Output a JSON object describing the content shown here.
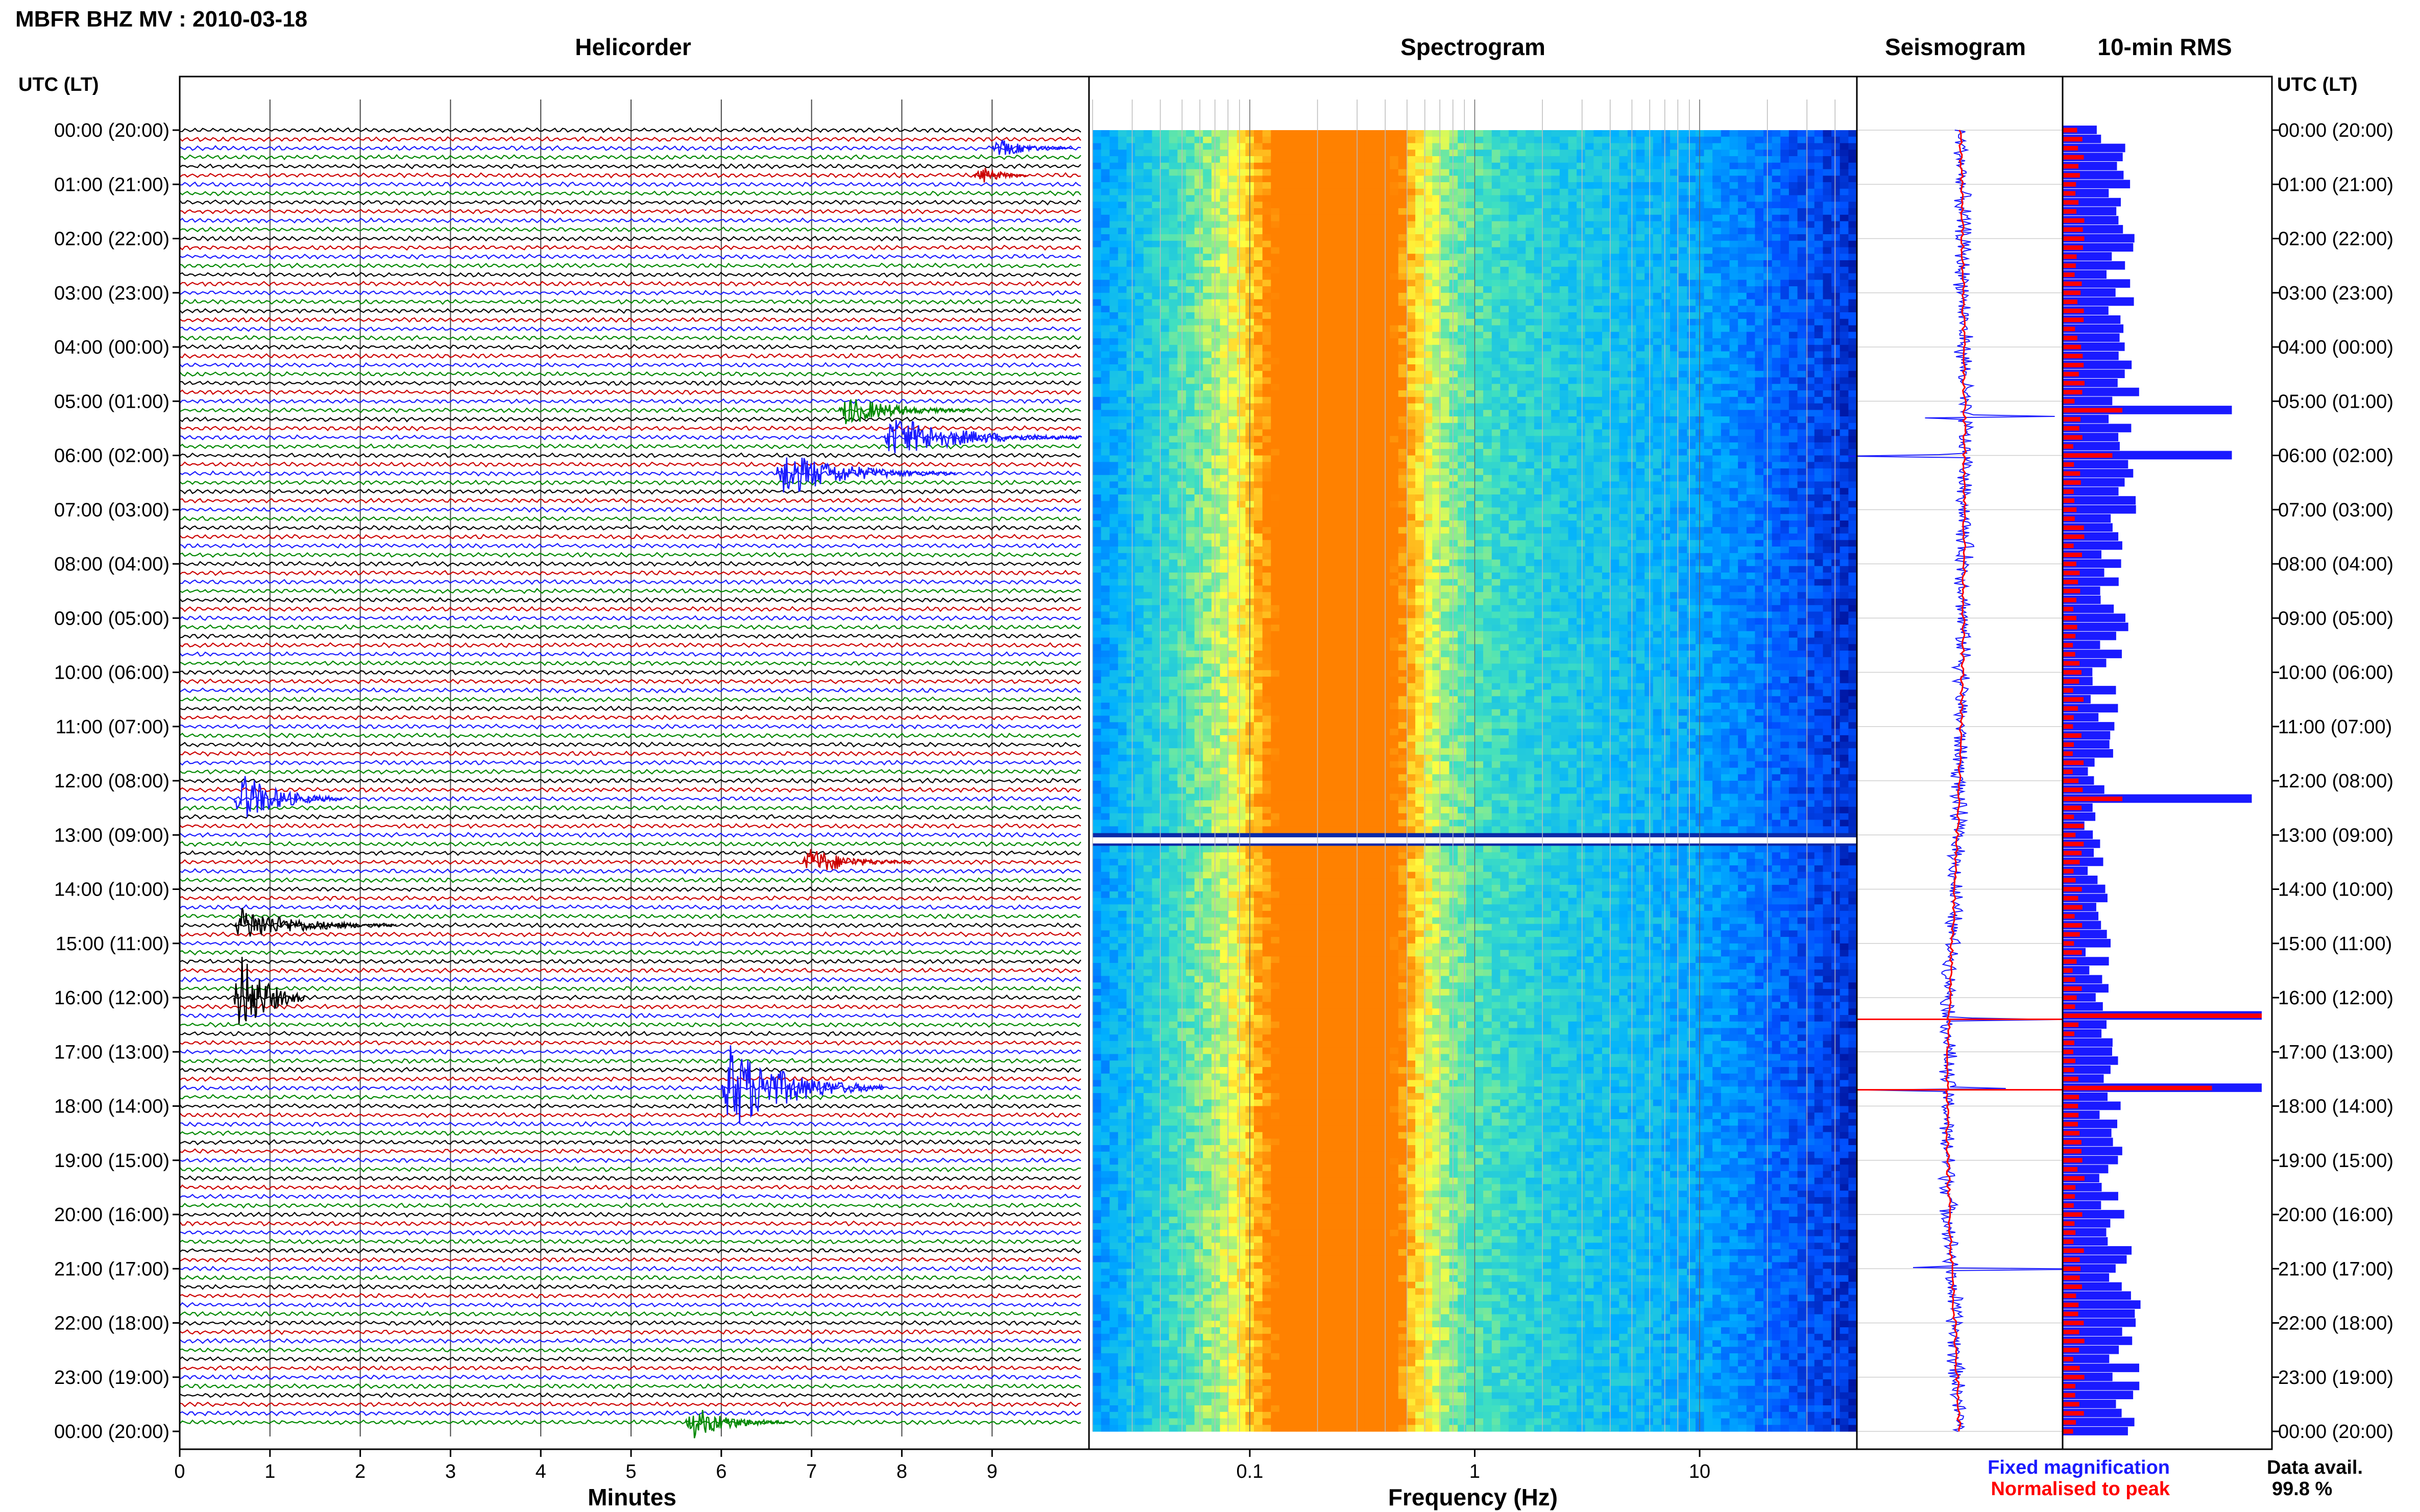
{
  "header": {
    "station_title": "MBFR BHZ MV : 2010-03-18",
    "utc_lt_label": "UTC (LT)"
  },
  "panels": {
    "helicorder": "Helicorder",
    "spectrogram": "Spectrogram",
    "seismogram": "Seismogram",
    "rms": "10-min RMS"
  },
  "hour_labels": [
    "00:00 (20:00)",
    "01:00 (21:00)",
    "02:00 (22:00)",
    "03:00 (23:00)",
    "04:00 (00:00)",
    "05:00 (01:00)",
    "06:00 (02:00)",
    "07:00 (03:00)",
    "08:00 (04:00)",
    "09:00 (05:00)",
    "10:00 (06:00)",
    "11:00 (07:00)",
    "12:00 (08:00)",
    "13:00 (09:00)",
    "14:00 (10:00)",
    "15:00 (11:00)",
    "16:00 (12:00)",
    "17:00 (13:00)",
    "18:00 (14:00)",
    "19:00 (15:00)",
    "20:00 (16:00)",
    "21:00 (17:00)",
    "22:00 (18:00)",
    "23:00 (19:00)",
    "00:00 (20:00)"
  ],
  "helicorder_axis": {
    "label": "Minutes",
    "ticks": [
      "0",
      "1",
      "2",
      "3",
      "4",
      "5",
      "6",
      "7",
      "8",
      "9"
    ]
  },
  "spectrogram_axis": {
    "label": "Frequency (Hz)",
    "ticks": [
      "0.1",
      "1",
      "10"
    ]
  },
  "legend": {
    "fixed": "Fixed magnification",
    "normalised": "Normalised to peak",
    "fixed_color": "#1a1aff",
    "normalised_color": "#ff0000"
  },
  "data_avail": {
    "label": "Data avail.",
    "value": "99.8 %"
  },
  "chart_data": {
    "type": "heatmap",
    "title": "MBFR BHZ MV : 2010-03-18",
    "helicorder": {
      "xlabel": "Minutes",
      "xlim": [
        0,
        10
      ],
      "trace_colors": [
        "#000000",
        "#cc0000",
        "#1a1aff",
        "#008800"
      ],
      "events": [
        {
          "hour": 0.4,
          "minute": 9.0,
          "amplitude": 0.6,
          "duration": 0.9
        },
        {
          "hour": 0.9,
          "minute": 8.8,
          "amplitude": 0.7,
          "duration": 0.6
        },
        {
          "hour": 5.1,
          "minute": 7.3,
          "amplitude": 0.9,
          "duration": 1.5
        },
        {
          "hour": 5.6,
          "minute": 7.8,
          "amplitude": 1.2,
          "duration": 2.5
        },
        {
          "hour": 6.3,
          "minute": 6.6,
          "amplitude": 1.3,
          "duration": 2.0
        },
        {
          "hour": 12.3,
          "minute": 0.6,
          "amplitude": 1.6,
          "duration": 1.2
        },
        {
          "hour": 13.5,
          "minute": 6.9,
          "amplitude": 0.9,
          "duration": 1.2
        },
        {
          "hour": 14.7,
          "minute": 0.6,
          "amplitude": 1.0,
          "duration": 1.8
        },
        {
          "hour": 16.0,
          "minute": 0.6,
          "amplitude": 3.0,
          "duration": 0.8
        },
        {
          "hour": 17.7,
          "minute": 6.0,
          "amplitude": 2.6,
          "duration": 1.8
        },
        {
          "hour": 23.9,
          "minute": 5.6,
          "amplitude": 1.0,
          "duration": 1.2
        }
      ]
    },
    "spectrogram": {
      "xlabel": "Frequency (Hz)",
      "xscale": "log",
      "xlim": [
        0.02,
        50
      ],
      "peak_frequency_hz": 0.25,
      "gap_hour": 13.1,
      "colormap": [
        "#000080",
        "#0050ff",
        "#00b0ff",
        "#40e0c0",
        "#ffff40",
        "#ff8000"
      ]
    },
    "seismogram": {
      "spike_hours": [
        5.3,
        6.0,
        16.4,
        17.7,
        21.0
      ],
      "fixed_color": "#1a1aff",
      "normalised_color": "#ff0000"
    },
    "rms_10min": {
      "series": [
        {
          "name": "Fixed magnification",
          "color": "#1a1aff"
        },
        {
          "name": "Normalised to peak",
          "color": "#ff0000"
        }
      ],
      "peaks": [
        {
          "hour": 5.2,
          "fixed": 0.85,
          "normalised": 0.3
        },
        {
          "hour": 6.0,
          "fixed": 0.85,
          "normalised": 0.25
        },
        {
          "hour": 12.4,
          "fixed": 0.95,
          "normalised": 0.3
        },
        {
          "hour": 16.4,
          "fixed": 1.0,
          "normalised": 1.0
        },
        {
          "hour": 17.7,
          "fixed": 1.0,
          "normalised": 0.75
        }
      ]
    }
  }
}
